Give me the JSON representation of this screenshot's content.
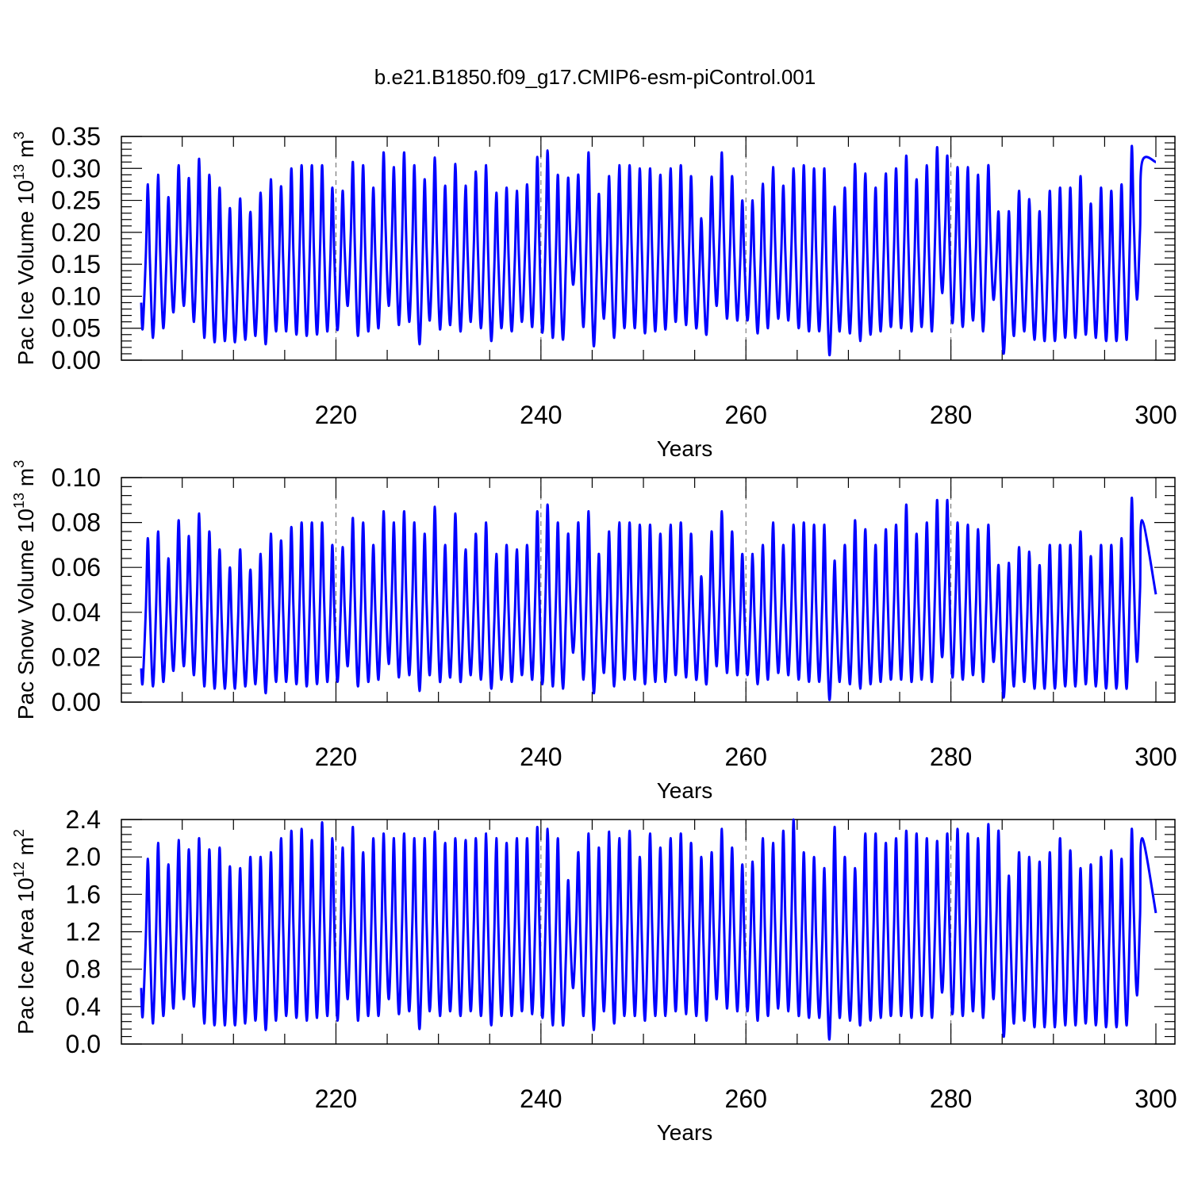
{
  "title": "b.e21.B1850.f09_g17.CMIP6-esm-piControl.001",
  "colors": {
    "line": "#0000ff",
    "axis": "#000000"
  },
  "chart_data": [
    {
      "type": "line",
      "ylabel_base": "Pac Ice Volume 10",
      "ylabel_exp": "13",
      "ylabel_unit": " m",
      "ylabel_unit_exp": "3",
      "xlabel": "Years",
      "xlim": [
        201,
        300
      ],
      "ylim": [
        0,
        0.35
      ],
      "xticks": [
        220,
        240,
        260,
        280,
        300
      ],
      "xtick_labels": [
        "220",
        "240",
        "260",
        "280",
        "300"
      ],
      "yticks": [
        0,
        0.05,
        0.1,
        0.15,
        0.2,
        0.25,
        0.3,
        0.35
      ],
      "ytick_labels": [
        "0.00",
        "0.05",
        "0.10",
        "0.15",
        "0.20",
        "0.25",
        "0.30",
        "0.35"
      ],
      "grid_x": [
        220,
        240,
        260,
        280
      ],
      "series": [
        {
          "name": "Pac Ice Volume",
          "start": 0.09,
          "end": 0.31,
          "maxima": [
            0.275,
            0.29,
            0.255,
            0.305,
            0.285,
            0.315,
            0.29,
            0.27,
            0.238,
            0.253,
            0.232,
            0.262,
            0.283,
            0.272,
            0.3,
            0.305,
            0.305,
            0.305,
            0.27,
            0.265,
            0.31,
            0.305,
            0.27,
            0.325,
            0.302,
            0.325,
            0.305,
            0.283,
            0.317,
            0.273,
            0.307,
            0.273,
            0.295,
            0.305,
            0.262,
            0.27,
            0.265,
            0.275,
            0.318,
            0.328,
            0.29,
            0.285,
            0.29,
            0.325,
            0.26,
            0.288,
            0.305,
            0.305,
            0.3,
            0.3,
            0.29,
            0.3,
            0.305,
            0.288,
            0.222,
            0.287,
            0.325,
            0.288,
            0.25,
            0.25,
            0.276,
            0.302,
            0.273,
            0.3,
            0.305,
            0.3,
            0.3,
            0.24,
            0.27,
            0.307,
            0.292,
            0.27,
            0.292,
            0.3,
            0.32,
            0.283,
            0.305,
            0.333,
            0.32,
            0.302,
            0.302,
            0.29,
            0.305,
            0.232,
            0.233,
            0.265,
            0.252,
            0.233,
            0.265,
            0.27,
            0.27,
            0.288,
            0.245,
            0.27,
            0.265,
            0.275,
            0.335,
            0.31
          ],
          "minima": [
            0.05,
            0.035,
            0.05,
            0.075,
            0.085,
            0.06,
            0.035,
            0.028,
            0.03,
            0.028,
            0.032,
            0.038,
            0.025,
            0.045,
            0.045,
            0.04,
            0.038,
            0.04,
            0.045,
            0.047,
            0.085,
            0.038,
            0.045,
            0.05,
            0.085,
            0.055,
            0.06,
            0.025,
            0.062,
            0.048,
            0.055,
            0.045,
            0.06,
            0.05,
            0.03,
            0.05,
            0.045,
            0.06,
            0.052,
            0.043,
            0.035,
            0.032,
            0.118,
            0.052,
            0.022,
            0.065,
            0.035,
            0.05,
            0.05,
            0.042,
            0.045,
            0.048,
            0.06,
            0.055,
            0.05,
            0.04,
            0.085,
            0.065,
            0.062,
            0.062,
            0.042,
            0.05,
            0.065,
            0.062,
            0.05,
            0.045,
            0.045,
            0.008,
            0.045,
            0.042,
            0.03,
            0.04,
            0.045,
            0.052,
            0.05,
            0.045,
            0.052,
            0.045,
            0.105,
            0.058,
            0.052,
            0.062,
            0.045,
            0.095,
            0.01,
            0.038,
            0.045,
            0.032,
            0.03,
            0.03,
            0.035,
            0.035,
            0.04,
            0.035,
            0.03,
            0.03,
            0.032,
            0.095
          ]
        }
      ]
    },
    {
      "type": "line",
      "ylabel_base": "Pac Snow Volume 10",
      "ylabel_exp": "13",
      "ylabel_unit": " m",
      "ylabel_unit_exp": "3",
      "xlabel": "Years",
      "xlim": [
        201,
        300
      ],
      "ylim": [
        0,
        0.1
      ],
      "xticks": [
        220,
        240,
        260,
        280,
        300
      ],
      "xtick_labels": [
        "220",
        "240",
        "260",
        "280",
        "300"
      ],
      "yticks": [
        0,
        0.02,
        0.04,
        0.06,
        0.08,
        0.1
      ],
      "ytick_labels": [
        "0.00",
        "0.02",
        "0.04",
        "0.06",
        "0.08",
        "0.10"
      ],
      "grid_x": [
        220,
        240,
        260,
        280
      ],
      "series": [
        {
          "name": "Pac Snow Volume",
          "start": 0.015,
          "end": 0.048,
          "maxima": [
            0.073,
            0.076,
            0.064,
            0.081,
            0.074,
            0.084,
            0.076,
            0.068,
            0.06,
            0.068,
            0.059,
            0.066,
            0.075,
            0.072,
            0.078,
            0.08,
            0.08,
            0.08,
            0.07,
            0.069,
            0.082,
            0.08,
            0.07,
            0.085,
            0.08,
            0.085,
            0.08,
            0.075,
            0.087,
            0.07,
            0.084,
            0.068,
            0.075,
            0.08,
            0.066,
            0.07,
            0.068,
            0.07,
            0.085,
            0.088,
            0.08,
            0.075,
            0.08,
            0.085,
            0.066,
            0.076,
            0.08,
            0.08,
            0.079,
            0.079,
            0.075,
            0.079,
            0.08,
            0.075,
            0.056,
            0.076,
            0.085,
            0.076,
            0.066,
            0.066,
            0.07,
            0.08,
            0.07,
            0.079,
            0.08,
            0.079,
            0.079,
            0.063,
            0.07,
            0.081,
            0.077,
            0.07,
            0.077,
            0.079,
            0.088,
            0.075,
            0.08,
            0.09,
            0.09,
            0.08,
            0.079,
            0.077,
            0.079,
            0.061,
            0.062,
            0.069,
            0.067,
            0.061,
            0.07,
            0.07,
            0.07,
            0.076,
            0.065,
            0.07,
            0.07,
            0.073,
            0.091,
            0.081
          ],
          "minima": [
            0.009,
            0.007,
            0.009,
            0.014,
            0.016,
            0.012,
            0.007,
            0.006,
            0.006,
            0.006,
            0.007,
            0.008,
            0.004,
            0.009,
            0.009,
            0.008,
            0.007,
            0.008,
            0.009,
            0.009,
            0.016,
            0.007,
            0.009,
            0.01,
            0.017,
            0.011,
            0.012,
            0.005,
            0.012,
            0.009,
            0.011,
            0.009,
            0.012,
            0.01,
            0.006,
            0.01,
            0.009,
            0.012,
            0.01,
            0.008,
            0.007,
            0.006,
            0.022,
            0.01,
            0.004,
            0.013,
            0.007,
            0.01,
            0.01,
            0.008,
            0.009,
            0.009,
            0.012,
            0.011,
            0.01,
            0.008,
            0.016,
            0.013,
            0.012,
            0.012,
            0.008,
            0.01,
            0.013,
            0.012,
            0.01,
            0.009,
            0.009,
            0.001,
            0.009,
            0.008,
            0.006,
            0.008,
            0.009,
            0.01,
            0.01,
            0.009,
            0.01,
            0.009,
            0.02,
            0.011,
            0.01,
            0.012,
            0.009,
            0.018,
            0.002,
            0.007,
            0.009,
            0.006,
            0.006,
            0.006,
            0.007,
            0.007,
            0.008,
            0.007,
            0.006,
            0.006,
            0.006,
            0.018
          ]
        }
      ]
    },
    {
      "type": "line",
      "ylabel_base": "Pac Ice Area 10",
      "ylabel_exp": "12",
      "ylabel_unit": " m",
      "ylabel_unit_exp": "2",
      "xlabel": "Years",
      "xlim": [
        201,
        300
      ],
      "ylim": [
        0,
        2.4
      ],
      "xticks": [
        220,
        240,
        260,
        280,
        300
      ],
      "xtick_labels": [
        "220",
        "240",
        "260",
        "280",
        "300"
      ],
      "yticks": [
        0,
        0.4,
        0.8,
        1.2,
        1.6,
        2.0,
        2.4
      ],
      "ytick_labels": [
        "0.0",
        "0.4",
        "0.8",
        "1.2",
        "1.6",
        "2.0",
        "2.4"
      ],
      "grid_x": [
        220,
        240,
        260,
        280
      ],
      "series": [
        {
          "name": "Pac Ice Area",
          "start": 0.6,
          "end": 1.4,
          "maxima": [
            1.98,
            2.15,
            1.92,
            2.18,
            2.08,
            2.2,
            2.08,
            2.1,
            1.9,
            1.88,
            2.0,
            2.0,
            2.05,
            2.2,
            2.28,
            2.3,
            2.18,
            2.37,
            2.2,
            2.1,
            2.32,
            2.05,
            2.2,
            2.25,
            2.2,
            2.25,
            2.2,
            2.2,
            2.27,
            2.15,
            2.2,
            2.18,
            2.2,
            2.25,
            2.2,
            2.15,
            2.2,
            2.2,
            2.32,
            2.3,
            2.2,
            1.75,
            2.05,
            2.25,
            2.1,
            2.27,
            2.2,
            2.28,
            2.0,
            2.25,
            2.1,
            2.2,
            2.25,
            2.15,
            2.0,
            2.05,
            2.3,
            2.1,
            1.92,
            1.95,
            2.2,
            2.15,
            2.28,
            2.4,
            2.05,
            2.0,
            1.88,
            2.32,
            2.0,
            1.88,
            2.25,
            2.25,
            2.15,
            2.2,
            2.28,
            2.25,
            2.2,
            2.17,
            2.25,
            2.3,
            2.25,
            2.2,
            2.35,
            2.28,
            1.8,
            2.05,
            2.0,
            1.95,
            2.05,
            2.2,
            2.07,
            1.88,
            1.92,
            2.0,
            2.07,
            1.98,
            2.3,
            2.2
          ],
          "minima": [
            0.3,
            0.22,
            0.3,
            0.38,
            0.48,
            0.4,
            0.22,
            0.2,
            0.2,
            0.2,
            0.22,
            0.25,
            0.15,
            0.25,
            0.3,
            0.28,
            0.25,
            0.28,
            0.3,
            0.25,
            0.48,
            0.25,
            0.3,
            0.3,
            0.48,
            0.32,
            0.35,
            0.16,
            0.35,
            0.3,
            0.35,
            0.3,
            0.35,
            0.3,
            0.2,
            0.3,
            0.3,
            0.35,
            0.32,
            0.28,
            0.2,
            0.2,
            0.6,
            0.3,
            0.15,
            0.35,
            0.22,
            0.3,
            0.3,
            0.25,
            0.3,
            0.3,
            0.35,
            0.32,
            0.3,
            0.25,
            0.48,
            0.38,
            0.35,
            0.35,
            0.25,
            0.3,
            0.38,
            0.35,
            0.3,
            0.28,
            0.28,
            0.05,
            0.28,
            0.25,
            0.2,
            0.25,
            0.28,
            0.3,
            0.3,
            0.28,
            0.3,
            0.28,
            0.55,
            0.32,
            0.3,
            0.35,
            0.28,
            0.48,
            0.08,
            0.22,
            0.25,
            0.18,
            0.18,
            0.18,
            0.2,
            0.2,
            0.22,
            0.2,
            0.18,
            0.18,
            0.2,
            0.52
          ]
        }
      ]
    }
  ]
}
